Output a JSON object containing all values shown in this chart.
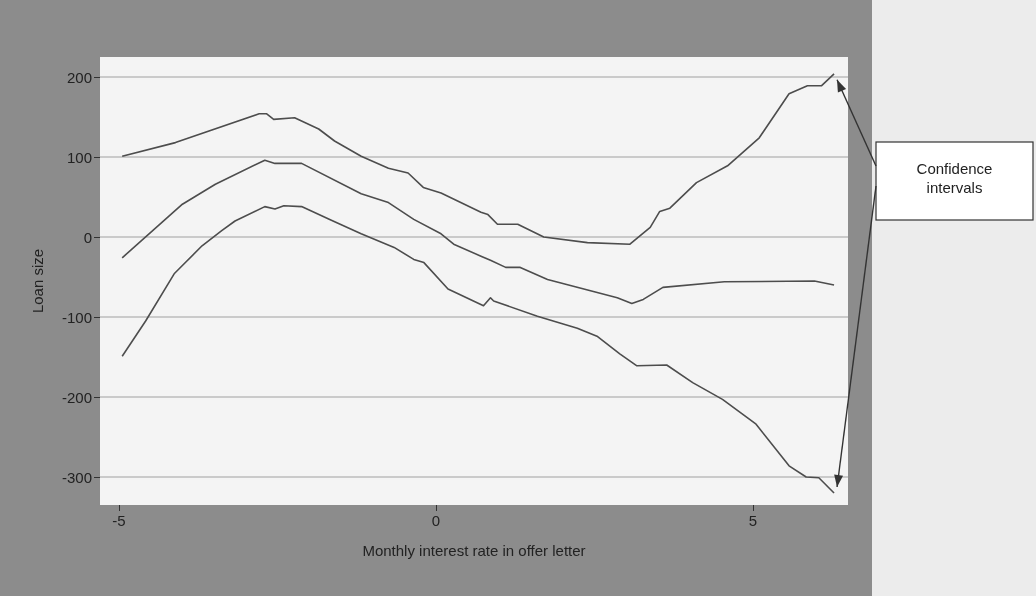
{
  "chart_data": {
    "type": "line",
    "xlabel": "Monthly interest rate in offer letter",
    "ylabel": "Loan size",
    "xlim": [
      -5.3,
      6.5
    ],
    "xticks": [
      -5,
      0,
      5
    ],
    "ylim": [
      -335,
      225
    ],
    "yticks": [
      -300,
      -200,
      -100,
      0,
      100,
      200
    ],
    "grid": "y",
    "marker": "none",
    "line_style": "solid",
    "annotations": [
      "Confidence intervals"
    ],
    "series": [
      {
        "color": "#4d4d4d",
        "x": [
          -4.95,
          -4.11,
          -2.79,
          -2.67,
          -2.56,
          -2.23,
          -1.85,
          -1.6,
          -1.18,
          -0.75,
          -0.44,
          -0.2,
          0.08,
          0.71,
          0.82,
          0.97,
          1.29,
          1.7,
          2.39,
          3.06,
          3.38,
          3.53,
          3.69,
          4.11,
          4.6,
          5.1,
          5.57,
          5.86,
          6.08,
          6.28
        ],
        "values": [
          101,
          118,
          154,
          154,
          147,
          149,
          135,
          120,
          101,
          86,
          80,
          62,
          55,
          31,
          28,
          16,
          16,
          0,
          -7,
          -9,
          12,
          32,
          36,
          68,
          89,
          124,
          179,
          189,
          189,
          204
        ]
      },
      {
        "color": "#4d4d4d",
        "x": [
          -4.95,
          -4.0,
          -3.48,
          -2.7,
          -2.54,
          -2.12,
          -1.18,
          -0.75,
          -0.35,
          0.08,
          0.28,
          0.71,
          0.86,
          1.1,
          1.33,
          1.76,
          2.86,
          3.09,
          3.27,
          3.58,
          4.55,
          5.97,
          6.28
        ],
        "values": [
          -26,
          41,
          66,
          96,
          92,
          92,
          54,
          43,
          22,
          4,
          -9,
          -24,
          -29,
          -38,
          -38,
          -53,
          -76,
          -83,
          -78,
          -63,
          -56,
          -55,
          -60
        ]
      },
      {
        "color": "#4d4d4d",
        "x": [
          -4.95,
          -4.58,
          -4.13,
          -3.69,
          -3.38,
          -3.17,
          -2.7,
          -2.54,
          -2.4,
          -2.12,
          -1.65,
          -1.18,
          -0.66,
          -0.35,
          -0.19,
          0.19,
          0.75,
          0.86,
          0.91,
          1.6,
          2.23,
          2.54,
          2.9,
          3.17,
          3.64,
          4.05,
          4.52,
          5.05,
          5.57,
          5.84,
          6.04,
          6.28
        ],
        "values": [
          -149,
          -105,
          -46,
          -11,
          8,
          20,
          38,
          35,
          39,
          38,
          21,
          4,
          -13,
          -28,
          -32,
          -65,
          -86,
          -76,
          -80,
          -99,
          -114,
          -124,
          -146,
          -161,
          -160,
          -182,
          -203,
          -234,
          -286,
          -300,
          -301,
          -320
        ]
      }
    ]
  }
}
